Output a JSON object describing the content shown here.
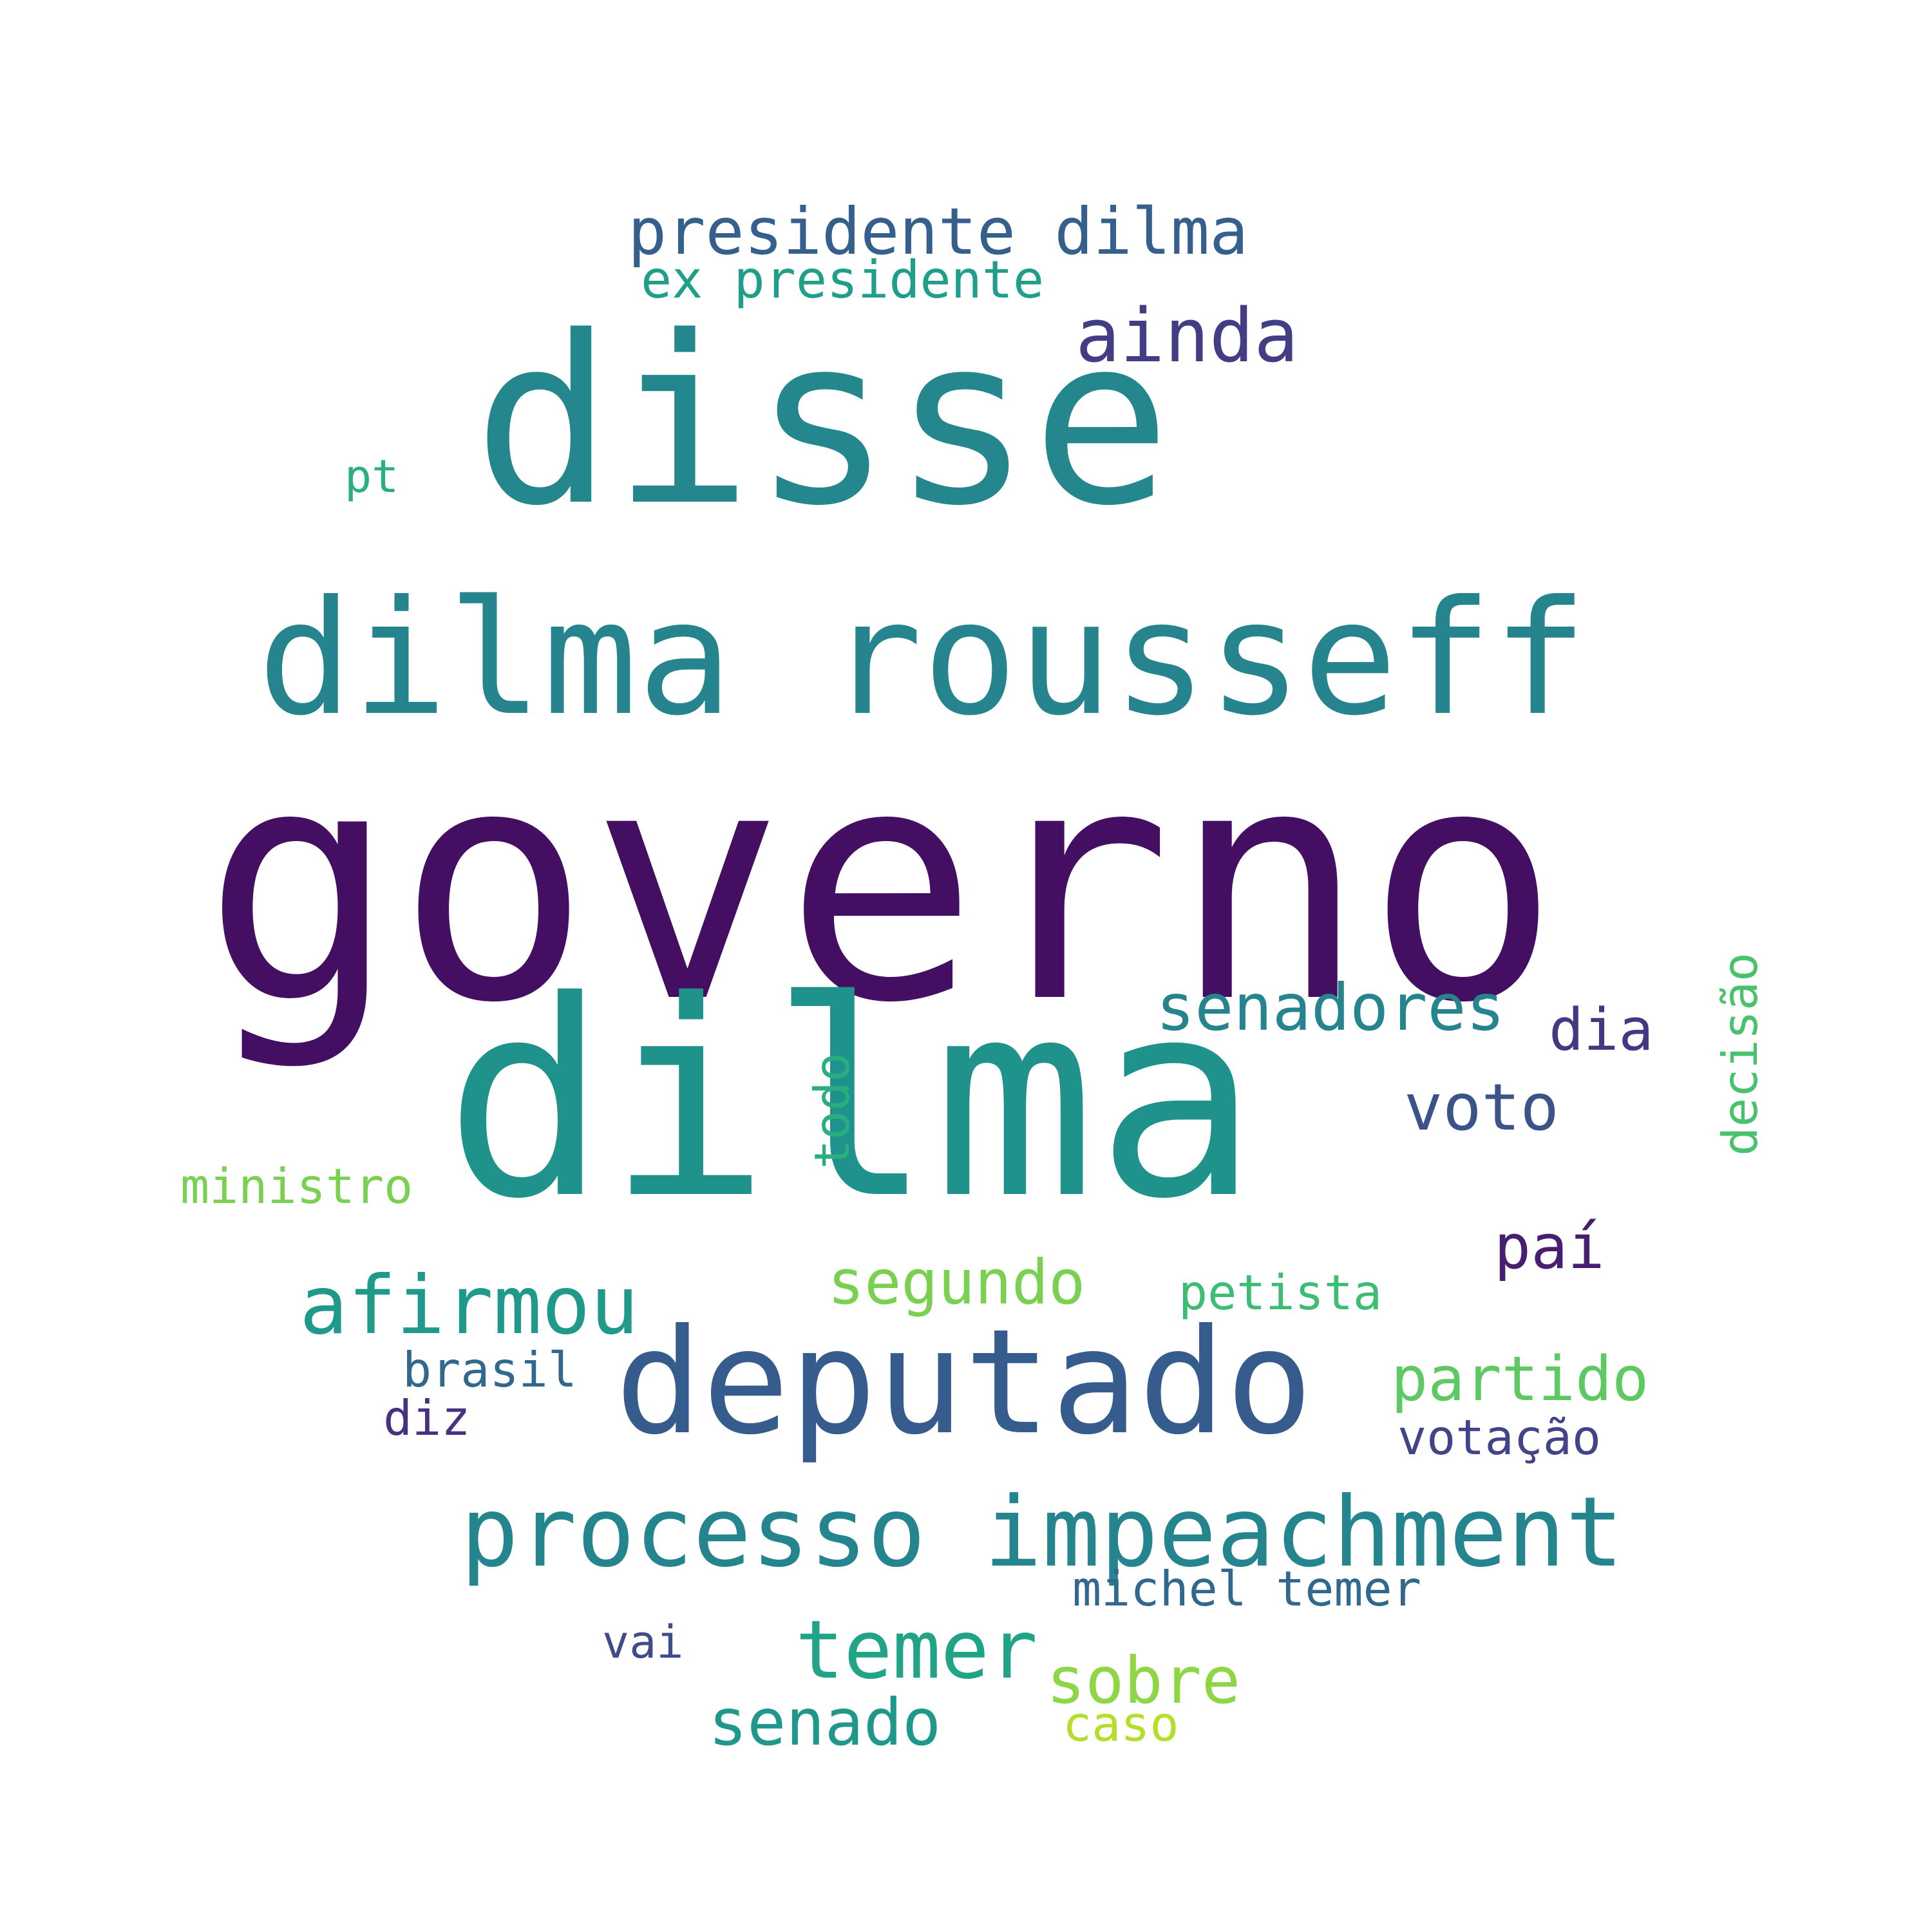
{
  "words": [
    {
      "text": "governo",
      "color": "#440f62"
    },
    {
      "text": "dilma",
      "color": "#20928c"
    },
    {
      "text": "disse",
      "color": "#24878e"
    },
    {
      "text": "dilma rousseff",
      "color": "#25848e"
    },
    {
      "text": "deputado",
      "color": "#365c8d"
    },
    {
      "text": "processo impeachment",
      "color": "#25858e"
    },
    {
      "text": "presidente dilma",
      "color": "#355f8d"
    },
    {
      "text": "ainda",
      "color": "#433d84"
    },
    {
      "text": "afirmou",
      "color": "#1f9a8a"
    },
    {
      "text": "temer",
      "color": "#20a386"
    },
    {
      "text": "senadores",
      "color": "#25848e"
    },
    {
      "text": "segundo",
      "color": "#7ad151"
    },
    {
      "text": "partido",
      "color": "#5ec962"
    },
    {
      "text": "sobre",
      "color": "#8ed645"
    },
    {
      "text": "senado",
      "color": "#1f988b"
    },
    {
      "text": "voto",
      "color": "#3b528b"
    },
    {
      "text": "dia",
      "color": "#453781"
    },
    {
      "text": "paí",
      "color": "#481f70"
    },
    {
      "text": "ex presidente",
      "color": "#1f9e89"
    },
    {
      "text": "michel temer",
      "color": "#31688e"
    },
    {
      "text": "ministro",
      "color": "#7ad151"
    },
    {
      "text": "petista",
      "color": "#3dbc74"
    },
    {
      "text": "votação",
      "color": "#414487"
    },
    {
      "text": "brasil",
      "color": "#31688e"
    },
    {
      "text": "diz",
      "color": "#46327e"
    },
    {
      "text": "caso",
      "color": "#b5de2b"
    },
    {
      "text": "vai",
      "color": "#3e4c8a"
    },
    {
      "text": "pt",
      "color": "#2ab07f"
    },
    {
      "text": "todo",
      "color": "#29af7f"
    },
    {
      "text": "decisão",
      "color": "#4ac16d"
    }
  ]
}
